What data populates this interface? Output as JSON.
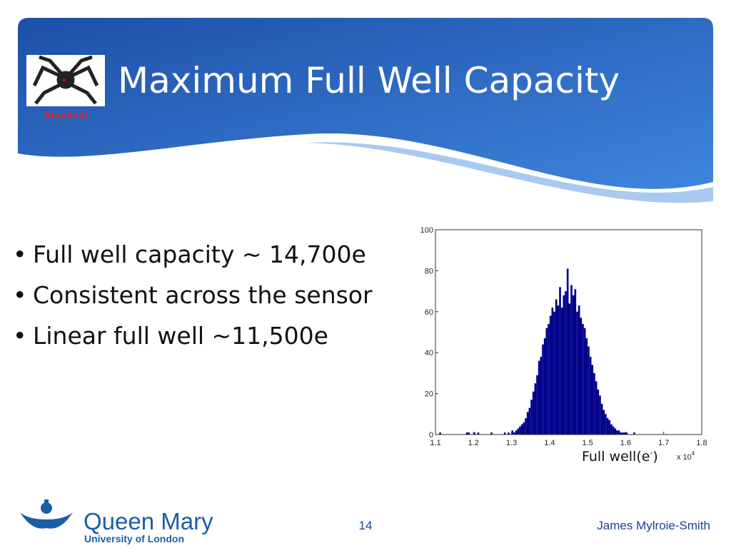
{
  "slide": {
    "title": "Maximum Full Well Capacity",
    "logo_text": "Arachnid",
    "bullets": [
      "Full well capacity  ~ 14,700e",
      "Consistent across the sensor",
      "Linear full well ~11,500e"
    ],
    "footer": {
      "org": "Queen Mary",
      "org_sub": "University of London",
      "page": "14",
      "author": "James Mylroie-Smith"
    }
  },
  "chart_data": {
    "type": "histogram",
    "xlabel": "Full well(e",
    "xlabel_sup": "-",
    "xlabel_end": ")",
    "x_multiplier": "x 10",
    "x_multiplier_exp": "4",
    "color": "#00008b",
    "bins": [
      11000,
      11050,
      11100,
      11150,
      11200,
      11250,
      11300,
      11350,
      11400,
      11450,
      11500,
      11550,
      11600,
      11650,
      11700,
      11750,
      11800,
      11850,
      11900,
      11950,
      12000,
      12050,
      12100,
      12150,
      12200,
      12250,
      12300,
      12350,
      12400,
      12450,
      12500,
      12550,
      12600,
      12650,
      12700,
      12750,
      12800,
      12850,
      12900,
      12950,
      13000,
      13050,
      13100,
      13150,
      13200,
      13250,
      13300,
      13350,
      13400,
      13450,
      13500,
      13550,
      13600,
      13650,
      13700,
      13750,
      13800,
      13850,
      13900,
      13950,
      14000,
      14050,
      14100,
      14150,
      14200,
      14250,
      14300,
      14350,
      14400,
      14450,
      14500,
      14550,
      14600,
      14650,
      14700,
      14750,
      14800,
      14850,
      14900,
      14950,
      15000,
      15050,
      15100,
      15150,
      15200,
      15250,
      15300,
      15350,
      15400,
      15450,
      15500,
      15550,
      15600,
      15650,
      15700,
      15750,
      15800,
      15850,
      15900,
      15950,
      16000,
      16050,
      16100,
      16150,
      16200,
      16250,
      16300,
      16350,
      16400,
      16450,
      16500,
      16550,
      16600,
      16650,
      16700,
      16750,
      16800,
      16850,
      16900,
      16950,
      17000
    ],
    "counts": [
      0,
      0,
      1,
      0,
      0,
      0,
      0,
      0,
      0,
      0,
      0,
      0,
      0,
      0,
      0,
      0,
      1,
      1,
      0,
      0,
      1,
      0,
      1,
      0,
      0,
      0,
      0,
      0,
      0,
      1,
      0,
      0,
      0,
      0,
      0,
      0,
      1,
      0,
      1,
      0,
      2,
      1,
      2,
      3,
      4,
      5,
      6,
      8,
      11,
      13,
      17,
      21,
      25,
      29,
      36,
      38,
      44,
      47,
      52,
      54,
      58,
      62,
      60,
      66,
      63,
      72,
      62,
      68,
      70,
      81,
      64,
      73,
      68,
      71,
      60,
      63,
      57,
      54,
      52,
      47,
      43,
      38,
      34,
      30,
      26,
      22,
      19,
      15,
      12,
      10,
      8,
      7,
      5,
      4,
      3,
      2,
      2,
      1,
      1,
      1,
      1,
      0,
      0,
      0,
      1,
      0,
      0,
      0,
      0,
      0,
      0,
      0,
      0,
      0,
      0,
      0,
      0,
      0,
      0,
      0
    ],
    "xlim": [
      11000,
      18000
    ],
    "xticks": [
      {
        "value": 11000,
        "label": "1.1"
      },
      {
        "value": 12000,
        "label": "1.2"
      },
      {
        "value": 13000,
        "label": "1.3"
      },
      {
        "value": 14000,
        "label": "1.4"
      },
      {
        "value": 15000,
        "label": "1.5"
      },
      {
        "value": 16000,
        "label": "1.6"
      },
      {
        "value": 17000,
        "label": "1.7"
      },
      {
        "value": 18000,
        "label": "1.8"
      }
    ],
    "ylim": [
      0,
      100
    ],
    "yticks": [
      0,
      20,
      40,
      60,
      80,
      100
    ]
  }
}
